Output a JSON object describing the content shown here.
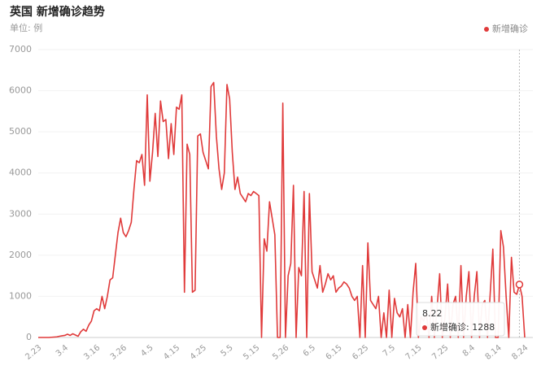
{
  "chart_data": {
    "type": "line",
    "title": "英国 新增确诊趋势",
    "subtitle": "单位: 例",
    "categories": [
      "2.23",
      null,
      null,
      null,
      null,
      null,
      null,
      null,
      null,
      null,
      "3.4",
      null,
      null,
      null,
      null,
      null,
      null,
      null,
      null,
      null,
      null,
      null,
      "3.16",
      null,
      null,
      null,
      null,
      null,
      null,
      null,
      null,
      null,
      "3.26",
      null,
      null,
      null,
      null,
      null,
      null,
      null,
      null,
      null,
      "4.5",
      null,
      null,
      null,
      null,
      null,
      null,
      null,
      null,
      null,
      "4.15",
      null,
      null,
      null,
      null,
      null,
      null,
      null,
      null,
      null,
      "4.25",
      null,
      null,
      null,
      null,
      null,
      null,
      null,
      null,
      null,
      "5.5",
      null,
      null,
      null,
      null,
      null,
      null,
      null,
      null,
      null,
      "5.15",
      null,
      null,
      null,
      null,
      null,
      null,
      null,
      null,
      null,
      null,
      "5.26",
      null,
      null,
      null,
      null,
      null,
      null,
      null,
      null,
      null,
      "6.5",
      null,
      null,
      null,
      null,
      null,
      null,
      null,
      null,
      null,
      "6.15",
      null,
      null,
      null,
      null,
      null,
      null,
      null,
      null,
      null,
      "6.25",
      null,
      null,
      null,
      null,
      null,
      null,
      null,
      null,
      null,
      "7.5",
      null,
      null,
      null,
      null,
      null,
      null,
      null,
      null,
      null,
      "7.15",
      null,
      null,
      null,
      null,
      null,
      null,
      null,
      null,
      null,
      "7.25",
      null,
      null,
      null,
      null,
      null,
      null,
      null,
      null,
      null,
      "8.4",
      null,
      null,
      null,
      null,
      null,
      null,
      null,
      null,
      null,
      "8.14",
      null,
      null,
      null,
      null,
      null,
      null,
      null,
      null,
      null,
      "8.24"
    ],
    "series": [
      {
        "name": "新增确诊",
        "color": "#e03a3a",
        "values": [
          0,
          0,
          0,
          0,
          0,
          5,
          10,
          15,
          30,
          40,
          50,
          80,
          50,
          90,
          60,
          30,
          140,
          200,
          150,
          300,
          400,
          650,
          700,
          650,
          1000,
          700,
          1000,
          1400,
          1450,
          2000,
          2550,
          2900,
          2550,
          2450,
          2600,
          2800,
          3600,
          4300,
          4250,
          4450,
          3700,
          5900,
          3800,
          4500,
          5450,
          4400,
          5750,
          5250,
          5300,
          4350,
          5200,
          4450,
          5600,
          5550,
          5900,
          1100,
          4700,
          4450,
          1100,
          1150,
          4900,
          4950,
          4500,
          4300,
          4100,
          6100,
          6200,
          4900,
          4100,
          3600,
          4000,
          6150,
          5800,
          4500,
          3600,
          3900,
          3500,
          3400,
          3300,
          3500,
          3450,
          3550,
          3500,
          3450,
          0,
          2400,
          2100,
          3300,
          2900,
          2500,
          0,
          0,
          5700,
          0,
          1500,
          1800,
          3700,
          0,
          1700,
          1500,
          3550,
          0,
          3500,
          1600,
          1400,
          1200,
          1750,
          1100,
          1300,
          1550,
          1400,
          1500,
          1100,
          1200,
          1250,
          1350,
          1300,
          1200,
          1000,
          900,
          1000,
          0,
          1750,
          0,
          2300,
          900,
          800,
          700,
          1000,
          0,
          600,
          0,
          1150,
          0,
          950,
          600,
          500,
          700,
          0,
          800,
          0,
          1100,
          1800,
          0,
          500,
          400,
          600,
          0,
          1000,
          0,
          700,
          1550,
          0,
          500,
          1300,
          0,
          800,
          1000,
          0,
          1750,
          0,
          1000,
          1600,
          0,
          1000,
          1600,
          0,
          800,
          900,
          0,
          1050,
          2150,
          0,
          0,
          2600,
          2200,
          1000,
          0,
          1950,
          1100,
          1050,
          1288,
          1000,
          0
        ]
      }
    ],
    "ylim": [
      0,
      7000
    ],
    "yticks": [
      0,
      1000,
      2000,
      3000,
      4000,
      5000,
      6000,
      7000
    ],
    "grid": true,
    "legend": "top-right",
    "tooltip": {
      "index": 181,
      "category": "8.22"
    }
  }
}
